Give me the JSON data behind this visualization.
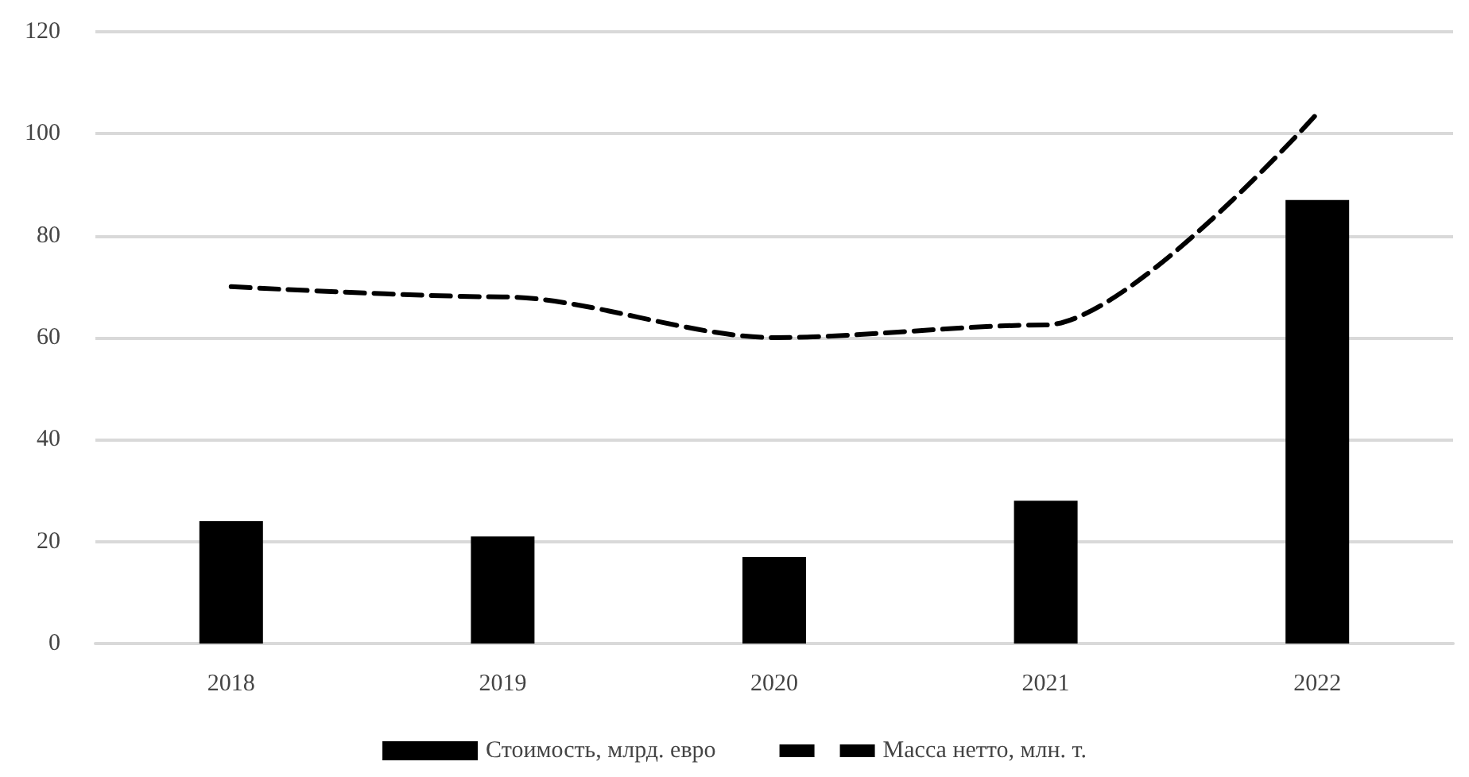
{
  "chart_data": {
    "type": "bar",
    "categories": [
      "2018",
      "2019",
      "2020",
      "2021",
      "2022"
    ],
    "series": [
      {
        "name": "Стоимость, млрд. евро",
        "color": "#000000",
        "values": [
          24,
          21,
          17,
          28,
          87
        ]
      },
      {
        "name": "Масса нетто, млн. т.",
        "type": "line",
        "color": "#000000",
        "line_style": "dashed",
        "marker": "none",
        "values": [
          70,
          68,
          60,
          62.5,
          104
        ]
      }
    ],
    "ylim": [
      0,
      120
    ],
    "yticks": [
      0,
      20,
      40,
      60,
      80,
      100,
      120
    ],
    "grid": "y",
    "legend": "bottom"
  }
}
